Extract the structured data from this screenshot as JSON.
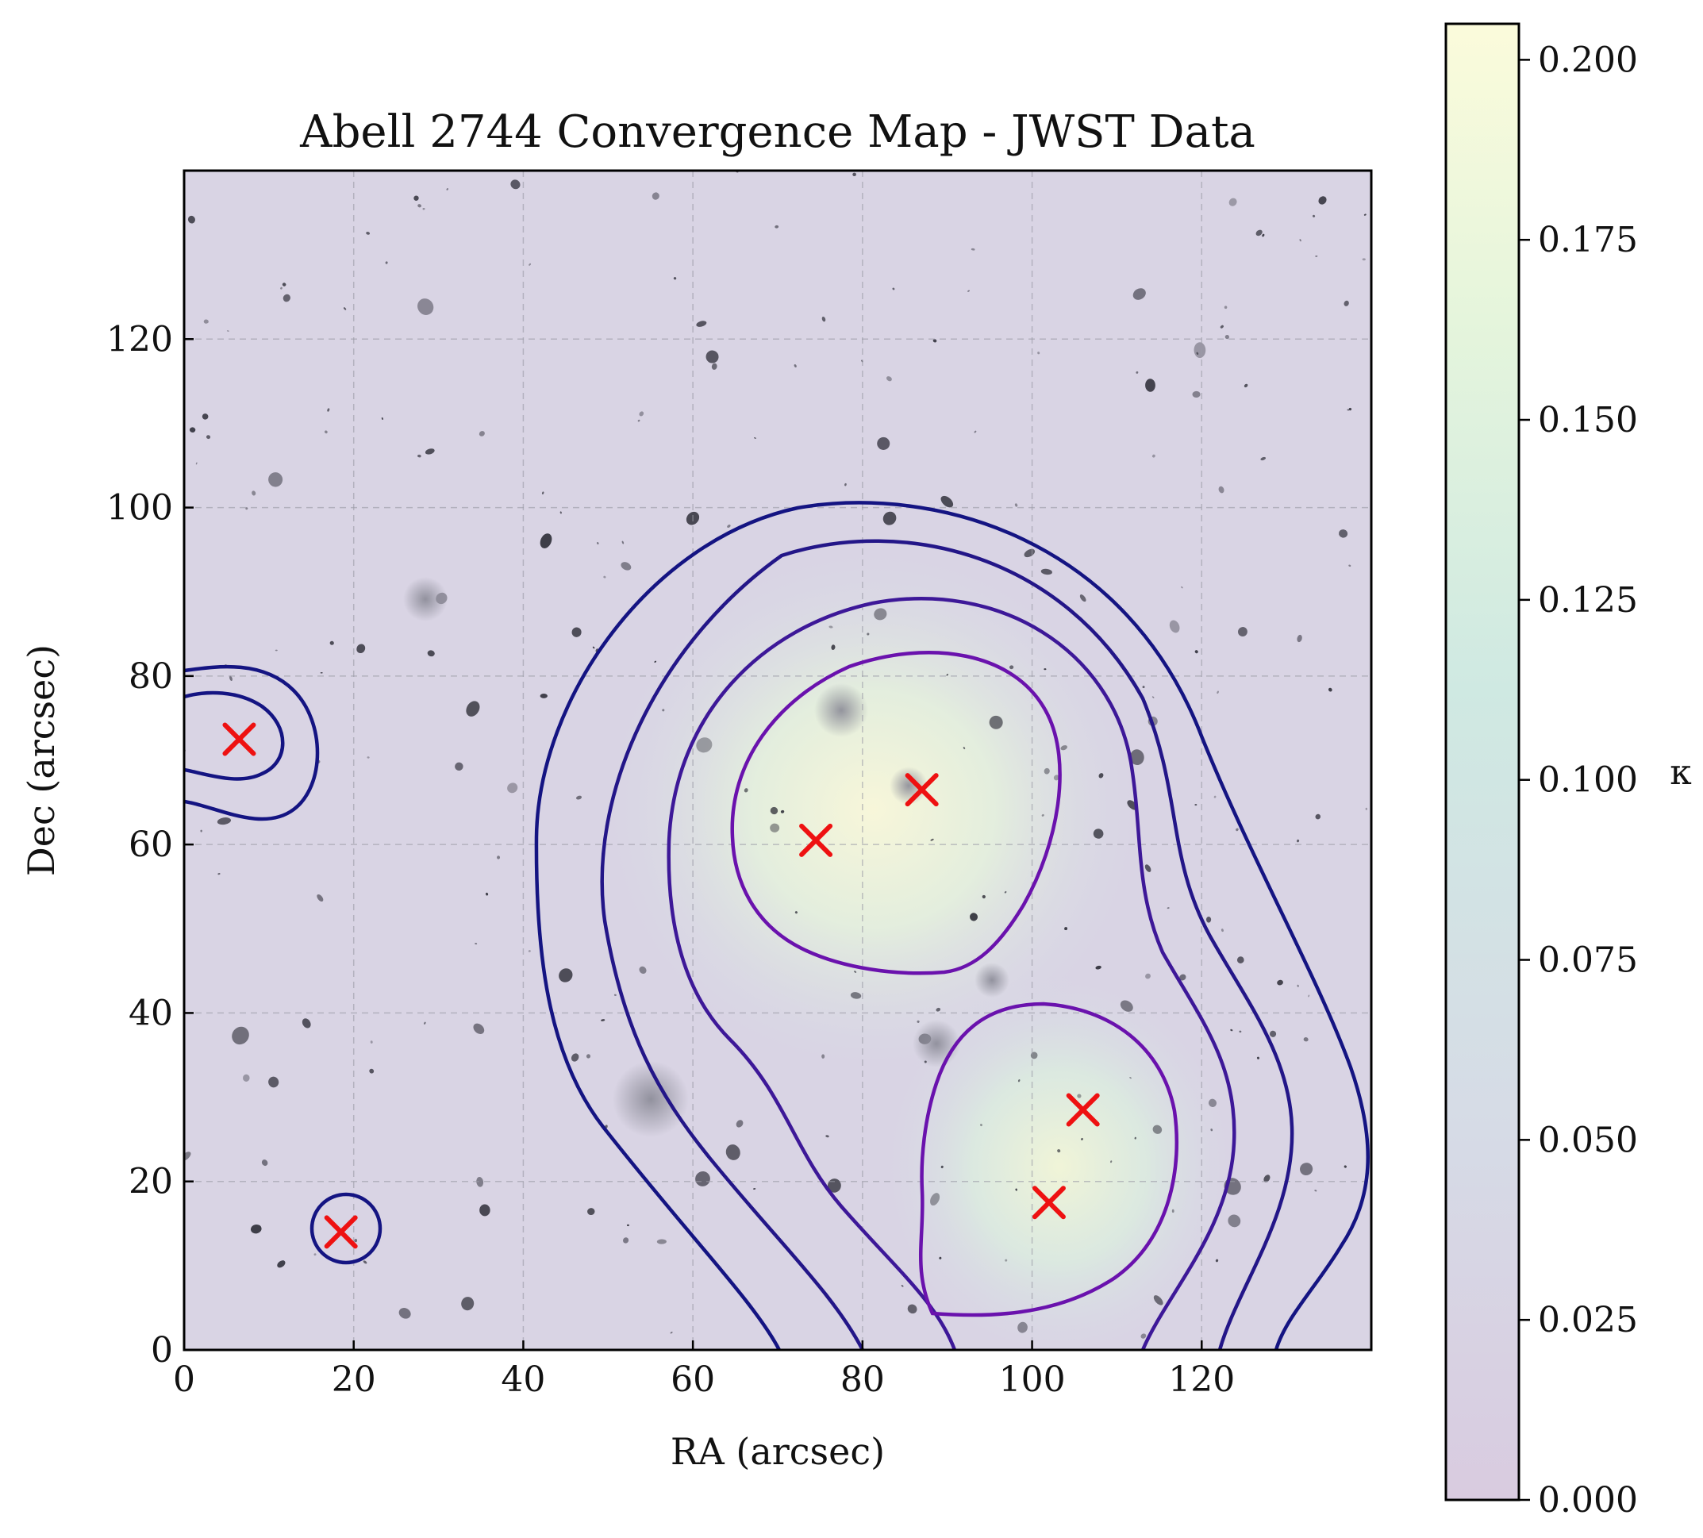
{
  "chart_data": {
    "type": "heatmap",
    "title": "Abell 2744 Convergence Map - JWST Data",
    "xlabel": "RA (arcsec)",
    "ylabel": "Dec (arcsec)",
    "xlim": [
      0,
      140
    ],
    "ylim": [
      0,
      140
    ],
    "xticks": [
      "0",
      "20",
      "40",
      "60",
      "80",
      "100",
      "120"
    ],
    "yticks": [
      "0",
      "20",
      "40",
      "60",
      "80",
      "100",
      "120"
    ],
    "grid": true,
    "colorbar": {
      "label": "κ",
      "range": [
        0,
        0.205
      ],
      "ticks": [
        "0.000",
        "0.025",
        "0.050",
        "0.075",
        "0.100",
        "0.125",
        "0.150",
        "0.175",
        "0.200"
      ],
      "colors": [
        "#d9cbe0",
        "#d6dbe6",
        "#cfe9e2",
        "#e5f5dc",
        "#fbfbdb"
      ]
    },
    "peaks": [
      {
        "x": 6.5,
        "y": 72.5
      },
      {
        "x": 18.5,
        "y": 14
      },
      {
        "x": 74.5,
        "y": 60.5
      },
      {
        "x": 87,
        "y": 66.5
      },
      {
        "x": 102,
        "y": 17.5
      },
      {
        "x": 106,
        "y": 28.5
      }
    ],
    "marker_color": "#ee1111",
    "contour_colors": [
      "#141482",
      "#2a1590",
      "#3d1898",
      "#6a12ad"
    ]
  }
}
